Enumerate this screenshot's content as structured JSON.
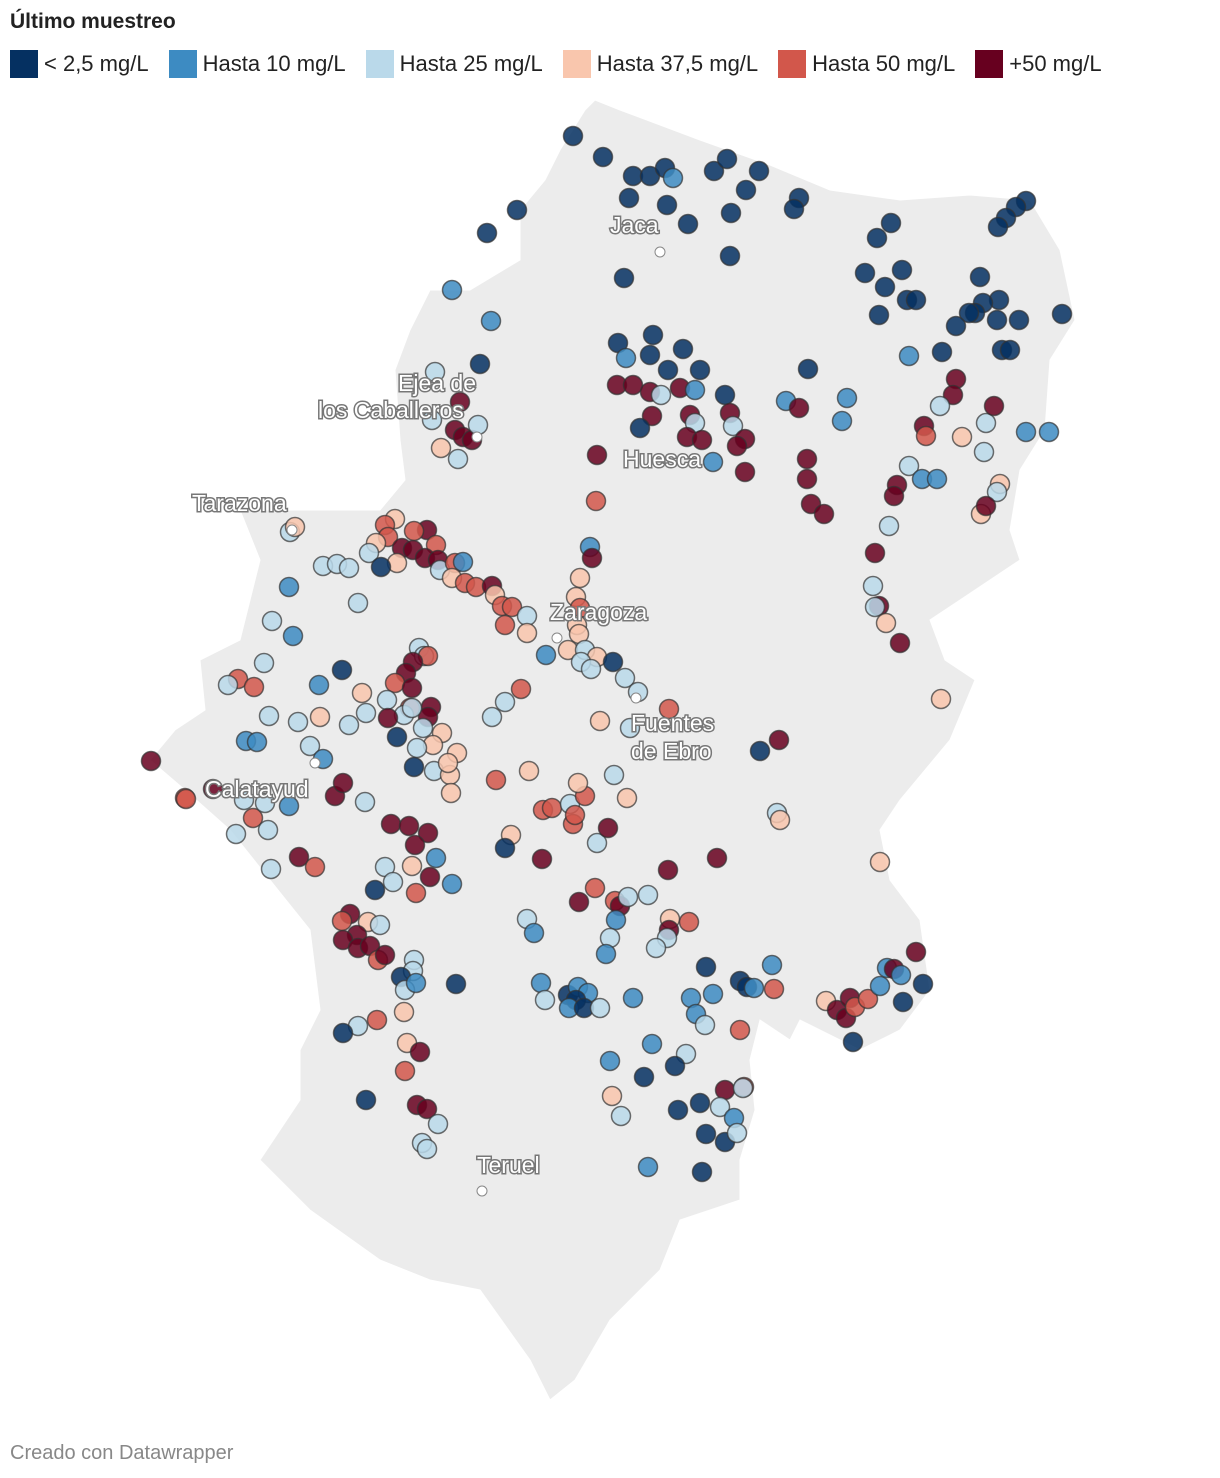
{
  "title": "Último muestreo",
  "legend": [
    {
      "label": "< 2,5 mg/L",
      "color": "#053061"
    },
    {
      "label": "Hasta 10 mg/L",
      "color": "#3d8bc2"
    },
    {
      "label": "Hasta 25 mg/L",
      "color": "#bad9ea"
    },
    {
      "label": "Hasta 37,5 mg/L",
      "color": "#f9c6ad"
    },
    {
      "label": "Hasta 50 mg/L",
      "color": "#d2574b"
    },
    {
      "label": "+50 mg/L",
      "color": "#67001f"
    }
  ],
  "cities": {
    "jaca": "Jaca",
    "ejea_1": "Ejea de",
    "ejea_2": "los Caballeros",
    "huesca": "Huesca",
    "tarazona": "Tarazona",
    "zaragoza": "Zaragoza",
    "fuentes_1": "Fuentes",
    "fuentes_2": "de Ebro",
    "calatayud": "Calatayud",
    "teruel": "Teruel"
  },
  "footer": "Creado con Datawrapper"
}
